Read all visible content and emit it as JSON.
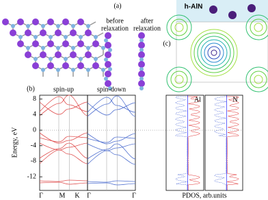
{
  "panel_a": {
    "label": "(a)",
    "before": [
      "before",
      "relaxation"
    ],
    "after": [
      "after",
      "relaxation"
    ]
  },
  "panel_b": {
    "label": "(b)",
    "spin_up": "spin-up",
    "spin_down": "spin-down",
    "ylabel": "Energy, eV",
    "ylim": [
      -15.5,
      9
    ],
    "yticks": [
      8,
      4,
      0,
      -4,
      -8,
      -12
    ],
    "kpoints": [
      "Γ",
      "M",
      "K",
      "Γ"
    ],
    "kpoint_end": "Γ",
    "pdos_al": "Al",
    "pdos_n": "N",
    "pdos_label": "PDOS, arb.units"
  },
  "panel_c": {
    "label": "(c)",
    "title": "h-AlN"
  }
}
